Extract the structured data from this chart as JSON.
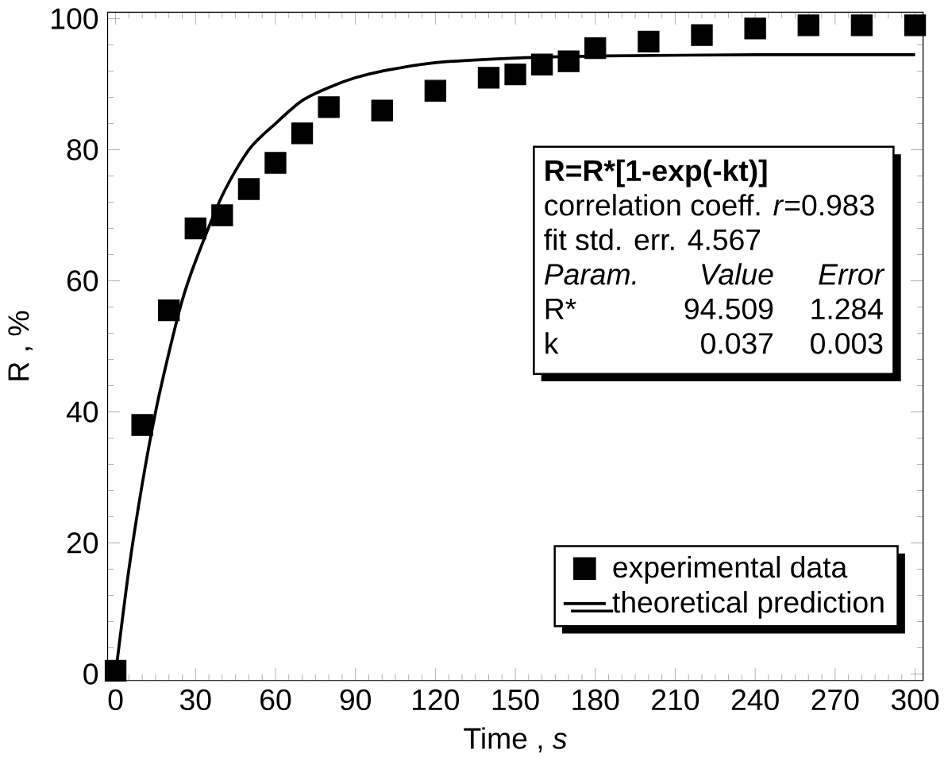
{
  "chart_data": {
    "type": "scatter",
    "xlabel": "Time , *s*",
    "ylabel": "R , %",
    "xlim": [
      -3,
      303
    ],
    "ylim": [
      -1,
      101
    ],
    "xticks": [
      0,
      30,
      60,
      90,
      120,
      150,
      180,
      210,
      240,
      270,
      300
    ],
    "yticks": [
      0,
      20,
      40,
      60,
      80,
      100
    ],
    "legend": "bottom right",
    "series": [
      {
        "name": "experimental data",
        "marker": "square",
        "color": "#000000",
        "x": [
          0,
          10,
          20,
          30,
          40,
          50,
          60,
          70,
          80,
          100,
          120,
          140,
          150,
          160,
          170,
          180,
          200,
          220,
          240,
          260,
          280,
          300
        ],
        "values": [
          0.5,
          38,
          55.5,
          68,
          70,
          74,
          78,
          82.5,
          86.5,
          86,
          89,
          91,
          91.5,
          93,
          93.5,
          95.5,
          96.5,
          97.5,
          98.5,
          99,
          99,
          99
        ]
      },
      {
        "name": "theoretical prediction",
        "type": "line",
        "line_style": "solid",
        "color": "#000000",
        "x": [
          0,
          5,
          10,
          15,
          20,
          25,
          30,
          40,
          50,
          60,
          70,
          80,
          90,
          100,
          120,
          150,
          180,
          240,
          300
        ],
        "values": [
          0,
          16,
          29,
          40,
          49,
          57,
          63,
          73,
          80,
          84,
          87.5,
          89.5,
          91,
          92,
          93.3,
          94,
          94.3,
          94.5,
          94.5
        ]
      }
    ],
    "annotations": [
      "R=R*[1-exp(-kt)]",
      "correlation coeff. *r*=0.983",
      "fit std. err. 4.567",
      "Param.",
      "Value",
      "Error",
      "R*",
      "94.509",
      "1.284",
      "k",
      "0.037",
      "0.003"
    ]
  }
}
